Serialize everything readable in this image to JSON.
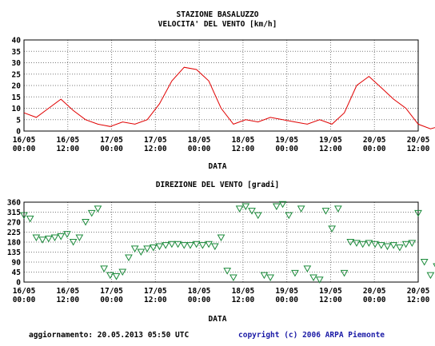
{
  "colors": {
    "speed": "#e00000",
    "direction": "#1a8a3a",
    "grid": "#7a7a7a",
    "frame": "#000000",
    "footer_right": "#1a1aa6"
  },
  "footer": {
    "left": "aggiornamento: 20.05.2013 05:50 UTC",
    "right": "copyright (c) 2006 ARPA Piemonte"
  },
  "chart_data": [
    {
      "type": "line",
      "title": "STAZIONE BASALUZZO",
      "subtitle": "VELOCITA' DEL VENTO [km/h]",
      "xlabel": "DATA",
      "ylabel": "",
      "ylim": [
        0,
        40
      ],
      "yticks": [
        "0",
        "5",
        "10",
        "15",
        "20",
        "25",
        "30",
        "35",
        "40"
      ],
      "xlim_hours": [
        0,
        96
      ],
      "xtick_labels": [
        [
          "16/05",
          "00:00"
        ],
        [
          "16/05",
          "12:00"
        ],
        [
          "17/05",
          "00:00"
        ],
        [
          "17/05",
          "12:00"
        ],
        [
          "18/05",
          "00:00"
        ],
        [
          "18/05",
          "12:00"
        ],
        [
          "19/05",
          "00:00"
        ],
        [
          "19/05",
          "12:00"
        ],
        [
          "20/05",
          "00:00"
        ],
        [
          "20/05",
          "12:00"
        ]
      ],
      "grid": true,
      "series": [
        {
          "x": [
            "16/05 00:00",
            "16/05 03:00",
            "16/05 06:00",
            "16/05 09:00",
            "16/05 12:00",
            "16/05 15:00",
            "16/05 18:00",
            "16/05 21:00",
            "17/05 00:00",
            "17/05 03:00",
            "17/05 06:00",
            "17/05 09:00",
            "17/05 12:00",
            "17/05 15:00",
            "17/05 18:00",
            "17/05 21:00",
            "18/05 00:00",
            "18/05 03:00",
            "18/05 06:00",
            "18/05 09:00",
            "18/05 12:00",
            "18/05 15:00",
            "18/05 18:00",
            "18/05 21:00",
            "19/05 00:00",
            "19/05 03:00",
            "19/05 06:00",
            "19/05 09:00",
            "19/05 12:00",
            "19/05 15:00",
            "19/05 18:00",
            "19/05 21:00",
            "20/05 00:00",
            "20/05 03:00",
            "20/05 05:00"
          ],
          "values": [
            8,
            6,
            10,
            14,
            9,
            5,
            3,
            2,
            4,
            3,
            5,
            12,
            22,
            28,
            27,
            22,
            10,
            3,
            5,
            4,
            6,
            5,
            4,
            3,
            5,
            3,
            8,
            20,
            24,
            19,
            14,
            10,
            3,
            1,
            2
          ]
        }
      ]
    },
    {
      "type": "scatter",
      "title": "DIREZIONE DEL VENTO [gradi]",
      "xlabel": "DATA",
      "ylabel": "",
      "ylim": [
        0,
        360
      ],
      "yticks": [
        "0",
        "45",
        "90",
        "135",
        "180",
        "225",
        "270",
        "315",
        "360"
      ],
      "xlim_hours": [
        0,
        96
      ],
      "xtick_labels": [
        [
          "16/05",
          "00:00"
        ],
        [
          "16/05",
          "12:00"
        ],
        [
          "17/05",
          "00:00"
        ],
        [
          "17/05",
          "12:00"
        ],
        [
          "18/05",
          "00:00"
        ],
        [
          "18/05",
          "12:00"
        ],
        [
          "19/05",
          "00:00"
        ],
        [
          "19/05",
          "12:00"
        ],
        [
          "20/05",
          "00:00"
        ],
        [
          "20/05",
          "12:00"
        ]
      ],
      "grid": true,
      "marker": "triangle-down",
      "series": [
        {
          "x": [
            "16/05 00:00",
            "16/05 01:30",
            "16/05 03:00",
            "16/05 04:30",
            "16/05 06:00",
            "16/05 07:30",
            "16/05 09:00",
            "16/05 10:30",
            "16/05 12:00",
            "16/05 13:30",
            "16/05 15:00",
            "16/05 16:30",
            "16/05 18:00",
            "16/05 19:30",
            "16/05 21:00",
            "16/05 22:30",
            "17/05 00:00",
            "17/05 01:30",
            "17/05 03:00",
            "17/05 04:30",
            "17/05 06:00",
            "17/05 07:30",
            "17/05 09:00",
            "17/05 10:30",
            "17/05 12:00",
            "17/05 13:30",
            "17/05 15:00",
            "17/05 16:30",
            "17/05 18:00",
            "17/05 19:30",
            "17/05 21:00",
            "17/05 22:30",
            "18/05 00:00",
            "18/05 01:30",
            "18/05 03:00",
            "18/05 04:30",
            "18/05 06:00",
            "18/05 07:30",
            "18/05 09:00",
            "18/05 10:30",
            "18/05 12:00",
            "18/05 13:30",
            "18/05 15:00",
            "18/05 16:30",
            "18/05 18:00",
            "18/05 19:30",
            "18/05 21:00",
            "18/05 22:30",
            "19/05 00:00",
            "19/05 01:30",
            "19/05 03:00",
            "19/05 04:30",
            "19/05 06:00",
            "19/05 07:30",
            "19/05 09:00",
            "19/05 10:30",
            "19/05 12:00",
            "19/05 13:30",
            "19/05 15:00",
            "19/05 16:30",
            "19/05 18:00",
            "19/05 19:30",
            "19/05 21:00",
            "19/05 22:30",
            "20/05 00:00",
            "20/05 01:30",
            "20/05 03:00",
            "20/05 04:30"
          ],
          "values": [
            300,
            285,
            200,
            190,
            195,
            200,
            205,
            215,
            180,
            200,
            270,
            310,
            330,
            60,
            30,
            25,
            45,
            110,
            150,
            135,
            150,
            155,
            160,
            165,
            170,
            170,
            165,
            165,
            170,
            165,
            170,
            160,
            200,
            50,
            20,
            330,
            340,
            320,
            300,
            30,
            20,
            340,
            350,
            300,
            40,
            330,
            60,
            20,
            10,
            320,
            240,
            330,
            40,
            180,
            175,
            170,
            175,
            170,
            165,
            160,
            165,
            155,
            170,
            175,
            310,
            90,
            30,
            70
          ]
        }
      ]
    }
  ]
}
